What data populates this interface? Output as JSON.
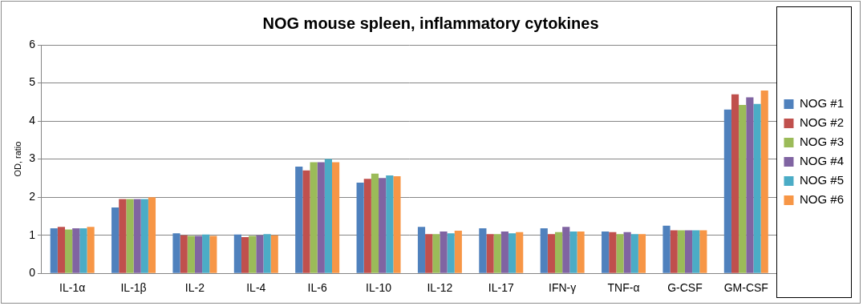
{
  "chart_data": {
    "type": "bar",
    "title": "NOG mouse spleen, inflammatory cytokines",
    "y_label": "OD, ratio",
    "categories": [
      "IL-1α",
      "IL-1β",
      "IL-2",
      "IL-4",
      "IL-6",
      "IL-10",
      "IL-12",
      "IL-17",
      "IFN-γ",
      "TNF-α",
      "G-CSF",
      "GM-CSF"
    ],
    "series": [
      {
        "name": "NOG #1",
        "color": "#4f81bd",
        "values": [
          1.18,
          1.73,
          1.05,
          1.02,
          2.8,
          2.38,
          1.22,
          1.18,
          1.18,
          1.1,
          1.25,
          4.3
        ]
      },
      {
        "name": "NOG #2",
        "color": "#c0504d",
        "values": [
          1.22,
          1.95,
          1.0,
          0.95,
          2.7,
          2.48,
          1.03,
          1.03,
          1.03,
          1.08,
          1.13,
          4.7
        ]
      },
      {
        "name": "NOG #3",
        "color": "#9bbb59",
        "values": [
          1.15,
          1.95,
          0.98,
          0.98,
          2.92,
          2.62,
          1.03,
          1.03,
          1.08,
          1.03,
          1.13,
          4.42
        ]
      },
      {
        "name": "NOG #4",
        "color": "#8064a2",
        "values": [
          1.18,
          1.95,
          0.98,
          1.0,
          2.92,
          2.5,
          1.1,
          1.1,
          1.22,
          1.08,
          1.13,
          4.62
        ]
      },
      {
        "name": "NOG #5",
        "color": "#4bacc6",
        "values": [
          1.18,
          1.95,
          1.02,
          1.03,
          3.0,
          2.57,
          1.05,
          1.05,
          1.1,
          1.03,
          1.13,
          4.45
        ]
      },
      {
        "name": "NOG #6",
        "color": "#f79646",
        "values": [
          1.22,
          2.0,
          0.98,
          1.0,
          2.92,
          2.55,
          1.12,
          1.08,
          1.1,
          1.03,
          1.13,
          4.8
        ]
      }
    ],
    "ylim": [
      0,
      6
    ],
    "yticks": [
      0,
      1,
      2,
      3,
      4,
      5,
      6
    ],
    "grid": true,
    "legend": "right"
  }
}
